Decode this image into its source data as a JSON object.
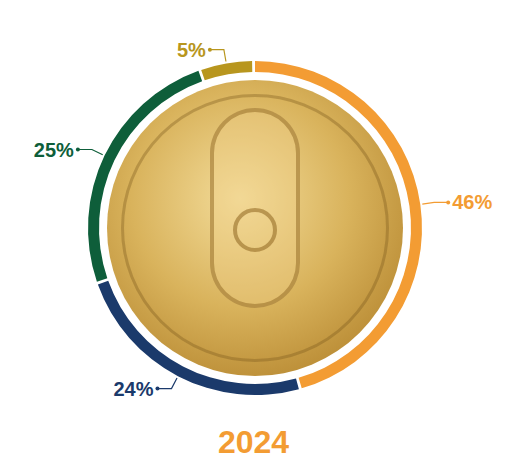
{
  "chart_data": {
    "type": "pie",
    "title": "2024",
    "values": [
      46,
      24,
      25,
      5
    ],
    "value_labels": [
      "46%",
      "24%",
      "25%",
      "5%"
    ],
    "colors": [
      "#F39C33",
      "#1B3A6B",
      "#0E5E3A",
      "#B8961E"
    ],
    "data_labels": true
  }
}
